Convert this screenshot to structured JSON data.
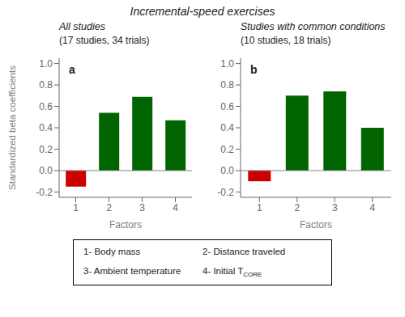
{
  "title": "Incremental-speed exercises",
  "annotations": [
    "1- Body mass",
    "2- Distance traveled",
    "3- Ambient temperature",
    "4- Initial T",
    "CORE"
  ],
  "chart_data": [
    {
      "type": "bar",
      "title": "All studies",
      "subtitle": "(17 studies, 34 trials)",
      "annotations": [
        "a"
      ],
      "categories": [
        "1",
        "2",
        "3",
        "4"
      ],
      "values": [
        -0.15,
        0.54,
        0.69,
        0.47
      ],
      "colors": [
        "#cc0000",
        "#006400",
        "#006400",
        "#006400"
      ],
      "xlabel": "Factors",
      "ylabel": "Standardized beta coefficients",
      "ylim": [
        -0.25,
        1.05
      ],
      "yticks": [
        -0.2,
        {
          "value": 0,
          "label": "0.0"
        },
        0.2,
        0.4,
        0.6,
        0.8,
        {
          "value": 1,
          "label": "1.0"
        }
      ]
    },
    {
      "type": "bar",
      "title": "Studies with common conditions",
      "subtitle": "(10 studies, 18 trials)",
      "annotations": [
        "b"
      ],
      "categories": [
        "1",
        "2",
        "3",
        "4"
      ],
      "values": [
        -0.1,
        0.7,
        0.74,
        0.4
      ],
      "colors": [
        "#cc0000",
        "#006400",
        "#006400",
        "#006400"
      ],
      "xlabel": "Factors",
      "ylim": [
        -0.25,
        1.05
      ],
      "yticks": [
        -0.2,
        {
          "value": 0,
          "label": "0.0"
        },
        0.2,
        0.4,
        0.6,
        0.8,
        {
          "value": 1,
          "label": "1.0"
        }
      ]
    }
  ]
}
